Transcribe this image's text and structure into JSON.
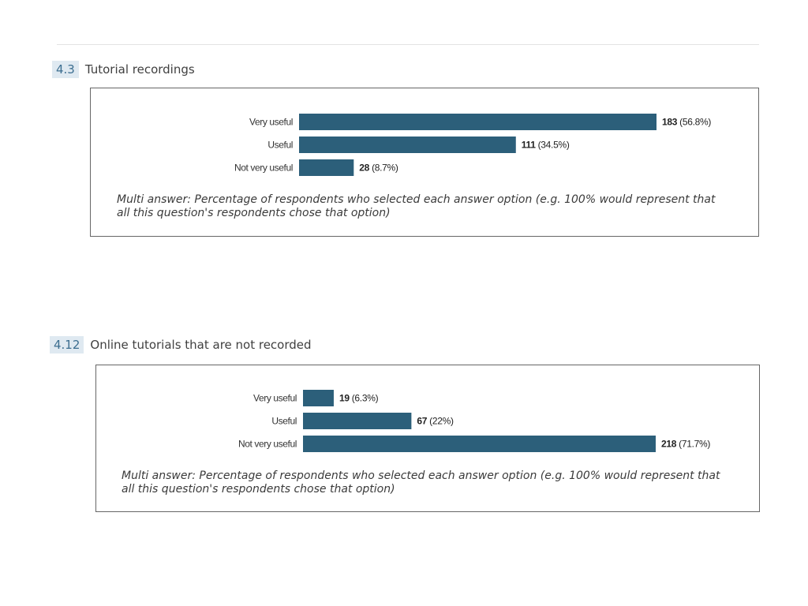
{
  "questions": [
    {
      "number": "4.3",
      "title": "Tutorial recordings",
      "note": "Multi answer: Percentage of respondents who selected each answer option (e.g. 100% would represent that all this question's respondents chose that option)"
    },
    {
      "number": "4.12",
      "title": "Online tutorials that are not recorded",
      "note": "Multi answer: Percentage of respondents who selected each answer option (e.g. 100% would represent that all this question's respondents chose that option)"
    }
  ],
  "chart_data": [
    {
      "type": "bar",
      "orientation": "horizontal",
      "categories": [
        "Very useful",
        "Useful",
        "Not very useful"
      ],
      "values": [
        183,
        111,
        28
      ],
      "percent_labels": [
        "(56.8%)",
        "(34.5%)",
        "(8.7%)"
      ],
      "bar_color": "#2c5f7a",
      "grid": false
    },
    {
      "type": "bar",
      "orientation": "horizontal",
      "categories": [
        "Very useful",
        "Useful",
        "Not very useful"
      ],
      "values": [
        19,
        67,
        218
      ],
      "percent_labels": [
        "(6.3%)",
        "(22%)",
        "(71.7%)"
      ],
      "bar_color": "#2c5f7a",
      "grid": false
    }
  ]
}
